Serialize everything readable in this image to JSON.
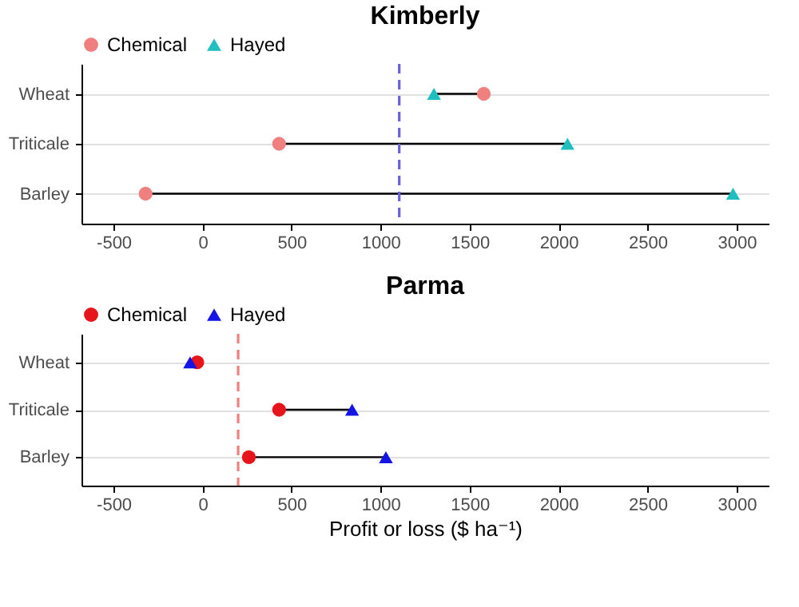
{
  "chart_data": [
    {
      "type": "scatter",
      "title": "Kimberly",
      "orientation": "horizontal",
      "categories": [
        "Wheat",
        "Triticale",
        "Barley"
      ],
      "xlim": [
        -680,
        3180
      ],
      "xticks": [
        -500,
        0,
        500,
        1000,
        1500,
        2000,
        2500,
        3000
      ],
      "grid": "y",
      "legend": "top left",
      "series": [
        {
          "name": "Chemical",
          "color": "#f08080",
          "marker": "circle",
          "values": [
            1580,
            430,
            -320
          ]
        },
        {
          "name": "Hayed",
          "color": "#20bfbf",
          "marker": "triangle",
          "values": [
            1300,
            2050,
            2980
          ]
        }
      ],
      "ref_lines": [
        {
          "axis": "x",
          "value": 1105,
          "color": "#6b5fe0",
          "line_style": "dashed"
        }
      ]
    },
    {
      "type": "scatter",
      "title": "Parma",
      "xlabel": "Profit or loss ($ ha⁻¹)",
      "orientation": "horizontal",
      "categories": [
        "Wheat",
        "Triticale",
        "Barley"
      ],
      "xlim": [
        -680,
        3180
      ],
      "xticks": [
        -500,
        0,
        500,
        1000,
        1500,
        2000,
        2500,
        3000
      ],
      "grid": "y",
      "legend": "top left",
      "series": [
        {
          "name": "Chemical",
          "color": "#e8141c",
          "marker": "circle",
          "values": [
            -30,
            430,
            260
          ]
        },
        {
          "name": "Hayed",
          "color": "#1414e6",
          "marker": "triangle",
          "values": [
            -70,
            840,
            1030
          ]
        }
      ],
      "ref_lines": [
        {
          "axis": "x",
          "value": 200,
          "color": "#f08080",
          "line_style": "dashed"
        }
      ]
    }
  ]
}
